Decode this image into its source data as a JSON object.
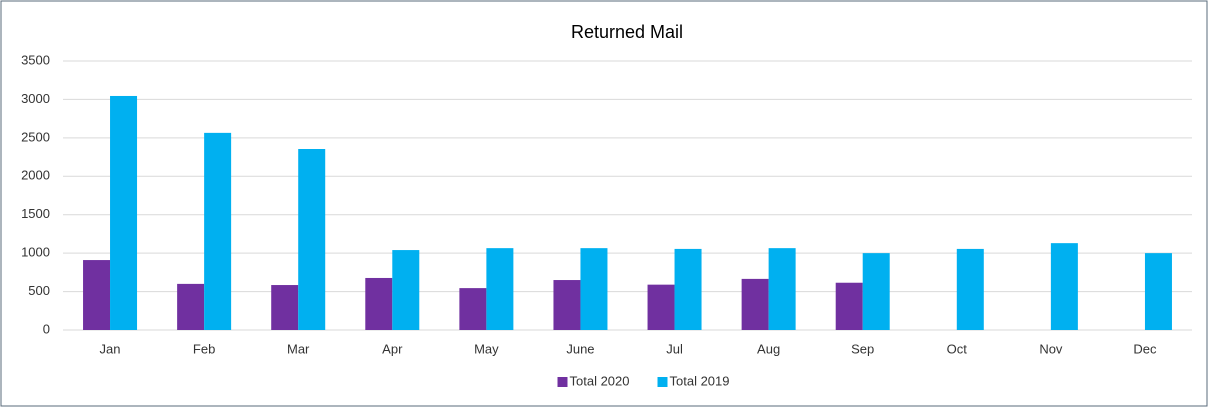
{
  "chart_data": {
    "type": "bar",
    "title": "Returned Mail",
    "categories": [
      "Jan",
      "Feb",
      "Mar",
      "Apr",
      "May",
      "June",
      "Jul",
      "Aug",
      "Sep",
      "Oct",
      "Nov",
      "Dec"
    ],
    "series": [
      {
        "name": "Total 2020",
        "color": "#7030a0",
        "values": [
          910,
          600,
          585,
          677,
          545,
          650,
          590,
          665,
          615,
          null,
          null,
          null
        ]
      },
      {
        "name": "Total 2019",
        "color": "#00b0f0",
        "values": [
          3045,
          2565,
          2355,
          1040,
          1065,
          1065,
          1055,
          1065,
          1000,
          1055,
          1130,
          1000
        ]
      }
    ],
    "ylim": [
      0,
      3500
    ],
    "yticks": [
      0,
      500,
      1000,
      1500,
      2000,
      2500,
      3000,
      3500
    ],
    "grid": true,
    "legend": "bottom"
  }
}
